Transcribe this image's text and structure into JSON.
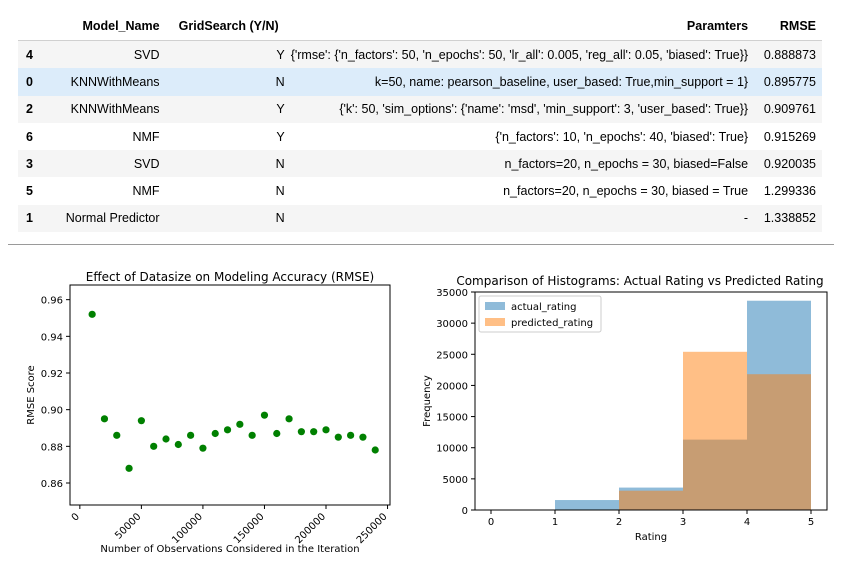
{
  "table": {
    "columns": [
      "",
      "Model_Name",
      "GridSearch (Y/N)",
      "Paramters",
      "RMSE"
    ],
    "rows": [
      {
        "index": "4",
        "model": "SVD",
        "grid": "Y",
        "params": "{'rmse': {'n_factors': 50, 'n_epochs': 50, 'lr_all': 0.005, 'reg_all': 0.05, 'biased': True}}",
        "rmse": "0.888873"
      },
      {
        "index": "0",
        "model": "KNNWithMeans",
        "grid": "N",
        "params": "k=50, name: pearson_baseline, user_based: True,min_support = 1}",
        "rmse": "0.895775"
      },
      {
        "index": "2",
        "model": "KNNWithMeans",
        "grid": "Y",
        "params": "{'k': 50, 'sim_options': {'name': 'msd', 'min_support': 3, 'user_based': True}}",
        "rmse": "0.909761"
      },
      {
        "index": "6",
        "model": "NMF",
        "grid": "Y",
        "params": "{'n_factors': 10, 'n_epochs': 40, 'biased': True}",
        "rmse": "0.915269"
      },
      {
        "index": "3",
        "model": "SVD",
        "grid": "N",
        "params": "n_factors=20, n_epochs = 30, biased=False",
        "rmse": "0.920035"
      },
      {
        "index": "5",
        "model": "NMF",
        "grid": "N",
        "params": "n_factors=20, n_epochs = 30, biased = True",
        "rmse": "1.299336"
      },
      {
        "index": "1",
        "model": "Normal Predictor",
        "grid": "N",
        "params": "-",
        "rmse": "1.338852"
      }
    ]
  },
  "chart_data": [
    {
      "type": "scatter",
      "title": "Effect of Datasize on Modeling Accuracy (RMSE)",
      "xlabel": "Number of Observations Considered in the Iteration",
      "ylabel": "RMSE Score",
      "xlim": [
        -8000,
        252000
      ],
      "ylim": [
        0.848,
        0.968
      ],
      "xticks": [
        0,
        50000,
        100000,
        150000,
        200000,
        250000
      ],
      "yticks": [
        0.86,
        0.88,
        0.9,
        0.92,
        0.94,
        0.96
      ],
      "grid": false,
      "color": "#008000",
      "x": [
        10000,
        20000,
        30000,
        40000,
        50000,
        60000,
        70000,
        80000,
        90000,
        100000,
        110000,
        120000,
        130000,
        140000,
        150000,
        160000,
        170000,
        180000,
        190000,
        200000,
        210000,
        220000,
        230000,
        240000
      ],
      "y": [
        0.952,
        0.895,
        0.886,
        0.868,
        0.894,
        0.88,
        0.884,
        0.881,
        0.886,
        0.879,
        0.887,
        0.889,
        0.892,
        0.886,
        0.897,
        0.887,
        0.895,
        0.888,
        0.888,
        0.889,
        0.885,
        0.886,
        0.885,
        0.878
      ]
    },
    {
      "type": "bar",
      "title": "Comparison of Histograms: Actual Rating vs Predicted Rating",
      "xlabel": "Rating",
      "ylabel": "Frequency",
      "xlim": [
        -0.25,
        5.25
      ],
      "ylim": [
        0,
        35000
      ],
      "xticks": [
        0,
        1,
        2,
        3,
        4,
        5
      ],
      "yticks": [
        0,
        5000,
        10000,
        15000,
        20000,
        25000,
        30000,
        35000
      ],
      "bins": [
        [
          1,
          2
        ],
        [
          2,
          3
        ],
        [
          3,
          4
        ],
        [
          4,
          5
        ]
      ],
      "legend_position": "top-left",
      "series": [
        {
          "name": "actual_rating",
          "color": "#1f77b4",
          "values": [
            1600,
            3600,
            11300,
            33600
          ]
        },
        {
          "name": "predicted_rating",
          "color": "#ff7f0e",
          "values": [
            0,
            3100,
            25400,
            21800
          ]
        }
      ]
    }
  ]
}
